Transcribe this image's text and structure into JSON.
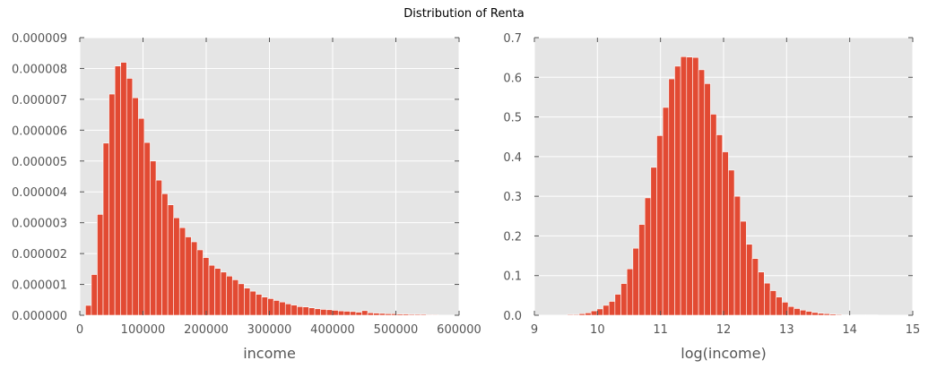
{
  "figure": {
    "title": "Distribution of Renta"
  },
  "colors": {
    "bar": "#e24a33",
    "bar_edge": "#ffffff",
    "plot_bg": "#e5e5e5",
    "grid": "#ffffff",
    "tick_text": "#555555"
  },
  "chart_data": [
    {
      "type": "bar",
      "xlabel": "income",
      "ylabel": "",
      "xlim": [
        0,
        600000
      ],
      "ylim": [
        0,
        9e-06
      ],
      "xticks": [
        "0",
        "100000",
        "200000",
        "300000",
        "400000",
        "500000",
        "600000"
      ],
      "yticks": [
        "0.000000",
        "0.000001",
        "0.000002",
        "0.000003",
        "0.000004",
        "0.000005",
        "0.000006",
        "0.000007",
        "0.000008",
        "0.000009"
      ],
      "grid": true,
      "bin_start": 9000,
      "bin_width": 9300,
      "values": [
        3.2e-07,
        1.32e-06,
        3.27e-06,
        5.58e-06,
        7.17e-06,
        8.08e-06,
        8.2e-06,
        7.68e-06,
        7.05e-06,
        6.38e-06,
        5.6e-06,
        5e-06,
        4.38e-06,
        3.94e-06,
        3.58e-06,
        3.16e-06,
        2.84e-06,
        2.54e-06,
        2.38e-06,
        2.12e-06,
        1.87e-06,
        1.62e-06,
        1.52e-06,
        1.4e-06,
        1.27e-06,
        1.15e-06,
        1.02e-06,
        8.8e-07,
        7.8e-07,
        6.8e-07,
        5.9e-07,
        5.4e-07,
        4.8e-07,
        4.3e-07,
        3.7e-07,
        3.3e-07,
        2.8e-07,
        2.7e-07,
        2.4e-07,
        2.1e-07,
        1.9e-07,
        1.8e-07,
        1.6e-07,
        1.4e-07,
        1.3e-07,
        1.2e-07,
        1e-07,
        1.5e-07,
        8e-08,
        7e-08,
        6e-08,
        5e-08,
        5e-08,
        4e-08,
        4e-08,
        3e-08,
        3e-08,
        3e-08,
        2e-08,
        2e-08
      ]
    },
    {
      "type": "bar",
      "xlabel": "log(income)",
      "ylabel": "",
      "xlim": [
        9,
        15
      ],
      "ylim": [
        0,
        0.7
      ],
      "xticks": [
        "9",
        "10",
        "11",
        "12",
        "13",
        "14",
        "15"
      ],
      "yticks": [
        "0.0",
        "0.1",
        "0.2",
        "0.3",
        "0.4",
        "0.5",
        "0.6",
        "0.7"
      ],
      "grid": true,
      "bin_start": 9.52,
      "bin_width": 0.0947,
      "values": [
        0.002,
        0.002,
        0.004,
        0.006,
        0.011,
        0.016,
        0.025,
        0.035,
        0.053,
        0.08,
        0.117,
        0.169,
        0.229,
        0.296,
        0.373,
        0.453,
        0.524,
        0.596,
        0.628,
        0.652,
        0.651,
        0.65,
        0.619,
        0.584,
        0.507,
        0.455,
        0.412,
        0.366,
        0.3,
        0.237,
        0.179,
        0.143,
        0.109,
        0.081,
        0.062,
        0.046,
        0.033,
        0.022,
        0.017,
        0.013,
        0.01,
        0.007,
        0.005,
        0.004,
        0.003,
        0.002,
        0.001,
        0.001,
        0.001,
        0.001,
        0.001,
        0.001
      ]
    }
  ]
}
